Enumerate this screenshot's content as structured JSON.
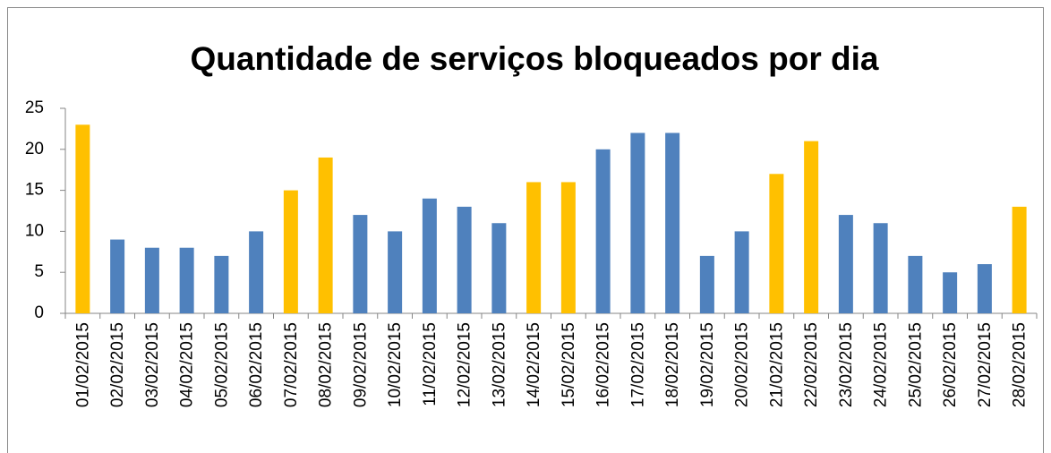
{
  "chart_data": {
    "type": "bar",
    "title": "Quantidade de serviços bloqueados por dia",
    "categories": [
      "01/02/2015",
      "02/02/2015",
      "03/02/2015",
      "04/02/2015",
      "05/02/2015",
      "06/02/2015",
      "07/02/2015",
      "08/02/2015",
      "09/02/2015",
      "10/02/2015",
      "11/02/2015",
      "12/02/2015",
      "13/02/2015",
      "14/02/2015",
      "15/02/2015",
      "16/02/2015",
      "17/02/2015",
      "18/02/2015",
      "19/02/2015",
      "20/02/2015",
      "21/02/2015",
      "22/02/2015",
      "23/02/2015",
      "24/02/2015",
      "25/02/2015",
      "26/02/2015",
      "27/02/2015",
      "28/02/2015"
    ],
    "values": [
      23,
      9,
      8,
      8,
      7,
      10,
      15,
      19,
      12,
      10,
      14,
      13,
      11,
      16,
      16,
      20,
      22,
      22,
      7,
      10,
      17,
      21,
      12,
      11,
      7,
      5,
      6,
      13
    ],
    "colors": [
      "#ffc000",
      "#4f81bd",
      "#4f81bd",
      "#4f81bd",
      "#4f81bd",
      "#4f81bd",
      "#ffc000",
      "#ffc000",
      "#4f81bd",
      "#4f81bd",
      "#4f81bd",
      "#4f81bd",
      "#4f81bd",
      "#ffc000",
      "#ffc000",
      "#4f81bd",
      "#4f81bd",
      "#4f81bd",
      "#4f81bd",
      "#4f81bd",
      "#ffc000",
      "#ffc000",
      "#4f81bd",
      "#4f81bd",
      "#4f81bd",
      "#4f81bd",
      "#4f81bd",
      "#ffc000"
    ],
    "ylim": [
      0,
      25
    ],
    "yticks": [
      0,
      5,
      10,
      15,
      20,
      25
    ],
    "grid": false
  }
}
